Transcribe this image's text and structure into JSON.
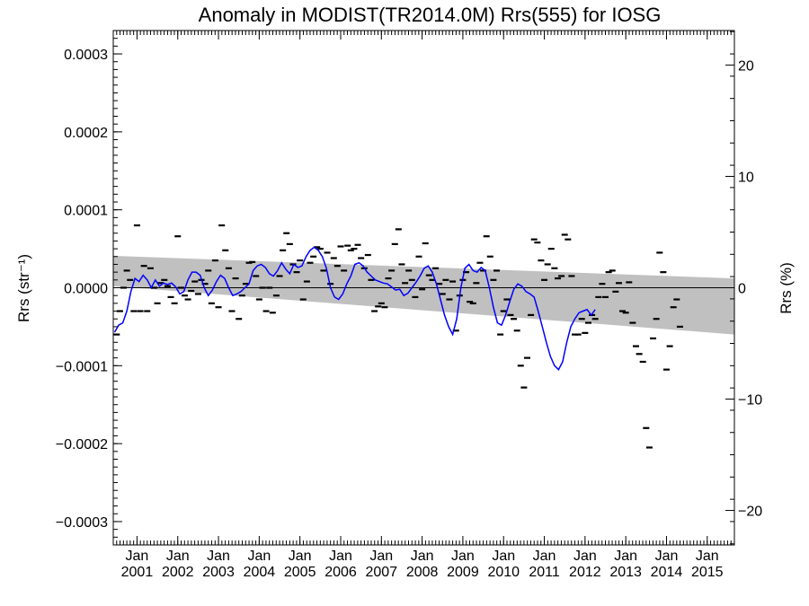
{
  "chart_data": {
    "type": "line",
    "title": "Anomaly in MODIST(TR2014.0M) Rrs(555) for IOSG",
    "ylabel_left": "Rrs (str⁻¹)",
    "ylabel_right": "Rrs (%)",
    "xlabel": "",
    "x_range": [
      "2000-06",
      "2015-09"
    ],
    "ylim_left": [
      -0.00033,
      0.00033
    ],
    "ylim_right": [
      -23.1,
      23.1
    ],
    "y_ticks_left": [
      "0.0003",
      "0.0002",
      "0.0001",
      "0.0000",
      "−0.0001",
      "−0.0002",
      "−0.0003"
    ],
    "y_ticks_right": [
      "20",
      "10",
      "0",
      "−10",
      "−20"
    ],
    "x_tick_top_labels": [
      "Jan",
      "Jan",
      "Jan",
      "Jan",
      "Jan",
      "Jan",
      "Jan",
      "Jan",
      "Jan",
      "Jan",
      "Jan",
      "Jan",
      "Jan",
      "Jan",
      "Jan"
    ],
    "x_tick_year_labels": [
      "2001",
      "2002",
      "2003",
      "2004",
      "2005",
      "2006",
      "2007",
      "2008",
      "2009",
      "2010",
      "2011",
      "2012",
      "2013",
      "2014",
      "2015"
    ],
    "grid": false,
    "colors": {
      "smoothed_line": "#0000ff",
      "monthly_markers": "#000000",
      "uncertainty_band": "#c0c0c0",
      "zero_line": "#000000"
    },
    "uncertainty_band": {
      "start": {
        "date": "2000.45",
        "upper": 4.1e-05,
        "lower": 2e-06
      },
      "end": {
        "date": "2015.75",
        "upper": 1.2e-05,
        "lower": -6e-05
      }
    },
    "monthly_anomaly": [
      [
        "2000.5",
        -6e-05
      ],
      [
        "2000.58",
        -3e-05
      ],
      [
        "2000.67",
        0.0
      ],
      [
        "2000.75",
        2.2e-05
      ],
      [
        "2000.83",
        1e-05
      ],
      [
        "2000.92",
        -3e-05
      ],
      [
        "2001.0",
        8e-05
      ],
      [
        "2001.08",
        -3e-05
      ],
      [
        "2001.17",
        2.8e-05
      ],
      [
        "2001.25",
        -3e-05
      ],
      [
        "2001.33",
        2.5e-05
      ],
      [
        "2001.42",
        0.0
      ],
      [
        "2001.5",
        -2e-05
      ],
      [
        "2001.58",
        6e-06
      ],
      [
        "2001.67",
        1e-05
      ],
      [
        "2001.75",
        2e-06
      ],
      [
        "2001.83",
        -1.2e-05
      ],
      [
        "2001.92",
        -2e-05
      ],
      [
        "2002.0",
        6.6e-05
      ],
      [
        "2002.08",
        0.0
      ],
      [
        "2002.17",
        -1e-05
      ],
      [
        "2002.25",
        -1.5e-05
      ],
      [
        "2002.33",
        -4e-06
      ],
      [
        "2002.42",
        8e-06
      ],
      [
        "2002.5",
        -8e-06
      ],
      [
        "2002.58",
        1e-05
      ],
      [
        "2002.67",
        5e-06
      ],
      [
        "2002.75",
        2.2e-05
      ],
      [
        "2002.83",
        -2e-05
      ],
      [
        "2002.92",
        3.5e-05
      ],
      [
        "2003.0",
        -2.5e-05
      ],
      [
        "2003.08",
        8e-05
      ],
      [
        "2003.17",
        4.8e-05
      ],
      [
        "2003.25",
        2.5e-05
      ],
      [
        "2003.33",
        -3e-05
      ],
      [
        "2003.42",
        1.2e-05
      ],
      [
        "2003.5",
        -4e-05
      ],
      [
        "2003.58",
        -1e-05
      ],
      [
        "2003.67",
        5e-06
      ],
      [
        "2003.75",
        3.2e-05
      ],
      [
        "2003.83",
        3.3e-05
      ],
      [
        "2003.92",
        1.5e-05
      ],
      [
        "2004.0",
        -1.5e-05
      ],
      [
        "2004.08",
        0.0
      ],
      [
        "2004.17",
        -3e-05
      ],
      [
        "2004.25",
        0.0
      ],
      [
        "2004.33",
        -3.2e-05
      ],
      [
        "2004.42",
        -1e-05
      ],
      [
        "2004.5",
        1.5e-05
      ],
      [
        "2004.58",
        4.8e-05
      ],
      [
        "2004.67",
        7e-05
      ],
      [
        "2004.75",
        5.6e-05
      ],
      [
        "2004.83",
        3e-05
      ],
      [
        "2004.92",
        2e-05
      ],
      [
        "2005.0",
        3.5e-05
      ],
      [
        "2005.08",
        -1.5e-05
      ],
      [
        "2005.17",
        8e-06
      ],
      [
        "2005.25",
        3.2e-05
      ],
      [
        "2005.33",
        4e-05
      ],
      [
        "2005.42",
        5.2e-05
      ],
      [
        "2005.5",
        5e-05
      ],
      [
        "2005.58",
        2.2e-05
      ],
      [
        "2005.67",
        4.5e-05
      ],
      [
        "2005.75",
        5e-06
      ],
      [
        "2005.83",
        3.8e-05
      ],
      [
        "2005.92",
        2.8e-05
      ],
      [
        "2006.0",
        5.3e-05
      ],
      [
        "2006.08",
        2.2e-05
      ],
      [
        "2006.17",
        5.4e-05
      ],
      [
        "2006.25",
        4.8e-05
      ],
      [
        "2006.33",
        5e-05
      ],
      [
        "2006.42",
        5.5e-05
      ],
      [
        "2006.5",
        3.8e-05
      ],
      [
        "2006.58",
        2.5e-05
      ],
      [
        "2006.67",
        4.2e-05
      ],
      [
        "2006.75",
        1e-05
      ],
      [
        "2006.83",
        -3e-05
      ],
      [
        "2006.92",
        -2.4e-05
      ],
      [
        "2007.0",
        -2e-05
      ],
      [
        "2007.08",
        -2.5e-05
      ],
      [
        "2007.17",
        1.2e-05
      ],
      [
        "2007.25",
        2.2e-05
      ],
      [
        "2007.33",
        5.6e-05
      ],
      [
        "2007.42",
        7.5e-05
      ],
      [
        "2007.5",
        3e-05
      ],
      [
        "2007.58",
        6e-06
      ],
      [
        "2007.67",
        2.2e-05
      ],
      [
        "2007.75",
        1e-05
      ],
      [
        "2007.83",
        -1.2e-05
      ],
      [
        "2007.92",
        4e-05
      ],
      [
        "2008.0",
        -2e-06
      ],
      [
        "2008.08",
        5.7e-05
      ],
      [
        "2008.17",
        1.6e-05
      ],
      [
        "2008.25",
        1e-05
      ],
      [
        "2008.33",
        2.5e-05
      ],
      [
        "2008.42",
        5e-06
      ],
      [
        "2008.5",
        -8e-06
      ],
      [
        "2008.58",
        1e-05
      ],
      [
        "2008.67",
        -1.5e-05
      ],
      [
        "2008.75",
        8e-06
      ],
      [
        "2008.83",
        -5.5e-05
      ],
      [
        "2008.92",
        -1e-05
      ],
      [
        "2009.0",
        1e-05
      ],
      [
        "2009.08",
        2e-05
      ],
      [
        "2009.17",
        -1.8e-05
      ],
      [
        "2009.25",
        -2e-05
      ],
      [
        "2009.33",
        6e-06
      ],
      [
        "2009.42",
        3.2e-05
      ],
      [
        "2009.5",
        2.2e-05
      ],
      [
        "2009.58",
        6.6e-05
      ],
      [
        "2009.67",
        4e-05
      ],
      [
        "2009.75",
        1e-05
      ],
      [
        "2009.83",
        2.2e-05
      ],
      [
        "2009.92",
        -6e-05
      ],
      [
        "2010.0",
        -3e-05
      ],
      [
        "2010.08",
        -1.5e-05
      ],
      [
        "2010.17",
        -3.5e-05
      ],
      [
        "2010.25",
        -4e-05
      ],
      [
        "2010.33",
        -5.5e-05
      ],
      [
        "2010.42",
        -0.0001
      ],
      [
        "2010.5",
        -0.000128
      ],
      [
        "2010.58",
        -9e-05
      ],
      [
        "2010.67",
        -3.5e-05
      ],
      [
        "2010.75",
        6.2e-05
      ],
      [
        "2010.83",
        5.8e-05
      ],
      [
        "2010.92",
        3.5e-05
      ],
      [
        "2011.0",
        1e-05
      ],
      [
        "2011.08",
        3e-05
      ],
      [
        "2011.17",
        5e-05
      ],
      [
        "2011.25",
        2.5e-05
      ],
      [
        "2011.33",
        1.2e-05
      ],
      [
        "2011.42",
        1.5e-05
      ],
      [
        "2011.5",
        6.8e-05
      ],
      [
        "2011.58",
        6.2e-05
      ],
      [
        "2011.67",
        1.5e-05
      ],
      [
        "2011.75",
        -6e-05
      ],
      [
        "2011.83",
        -6e-05
      ],
      [
        "2011.92",
        -4e-05
      ],
      [
        "2012.0",
        -5.8e-05
      ],
      [
        "2012.08",
        -4.5e-05
      ],
      [
        "2012.17",
        -3.5e-05
      ],
      [
        "2012.25",
        -4e-05
      ],
      [
        "2012.33",
        -1.2e-05
      ],
      [
        "2012.42",
        5e-06
      ],
      [
        "2012.5",
        -1.2e-05
      ],
      [
        "2012.58",
        2e-05
      ],
      [
        "2012.67",
        2.2e-05
      ],
      [
        "2012.75",
        -5e-06
      ],
      [
        "2012.83",
        6e-06
      ],
      [
        "2012.92",
        -3e-05
      ],
      [
        "2013.0",
        -3.2e-05
      ],
      [
        "2013.08",
        7e-06
      ],
      [
        "2013.17",
        -4.5e-05
      ],
      [
        "2013.25",
        -7.5e-05
      ],
      [
        "2013.33",
        -8.5e-05
      ],
      [
        "2013.42",
        -9.5e-05
      ],
      [
        "2013.5",
        -0.00018
      ],
      [
        "2013.58",
        -0.000205
      ],
      [
        "2013.67",
        -6.5e-05
      ],
      [
        "2013.75",
        -4e-05
      ],
      [
        "2013.83",
        4.5e-05
      ],
      [
        "2013.92",
        2e-05
      ],
      [
        "2014.0",
        -0.000105
      ],
      [
        "2014.08",
        -7.5e-05
      ],
      [
        "2014.17",
        -2.5e-05
      ],
      [
        "2014.25",
        -1.5e-05
      ],
      [
        "2014.33",
        -5e-05
      ]
    ],
    "smoothed_series": [
      [
        "2000.45",
        -5.7e-05
      ],
      [
        "2000.55",
        -4.8e-05
      ],
      [
        "2000.65",
        -4.5e-05
      ],
      [
        "2000.75",
        -3e-05
      ],
      [
        "2000.85",
        -5e-06
      ],
      [
        "2000.95",
        1.2e-05
      ],
      [
        "2001.05",
        8e-06
      ],
      [
        "2001.15",
        1.6e-05
      ],
      [
        "2001.25",
        1e-05
      ],
      [
        "2001.35",
        0.0
      ],
      [
        "2001.45",
        1e-05
      ],
      [
        "2001.55",
        2e-06
      ],
      [
        "2001.65",
        6e-06
      ],
      [
        "2001.75",
        4e-06
      ],
      [
        "2001.85",
        6e-06
      ],
      [
        "2001.95",
        1e-06
      ],
      [
        "2002.05",
        -8e-06
      ],
      [
        "2002.15",
        -5e-06
      ],
      [
        "2002.25",
        1e-05
      ],
      [
        "2002.35",
        2e-05
      ],
      [
        "2002.45",
        2e-05
      ],
      [
        "2002.55",
        1.6e-05
      ],
      [
        "2002.65",
        0.0
      ],
      [
        "2002.75",
        -1e-05
      ],
      [
        "2002.85",
        -3e-06
      ],
      [
        "2002.95",
        8e-06
      ],
      [
        "2003.05",
        1.6e-05
      ],
      [
        "2003.15",
        1.2e-05
      ],
      [
        "2003.25",
        0.0
      ],
      [
        "2003.35",
        -1e-05
      ],
      [
        "2003.45",
        -8e-06
      ],
      [
        "2003.55",
        -5e-06
      ],
      [
        "2003.65",
        0.0
      ],
      [
        "2003.75",
        5e-06
      ],
      [
        "2003.85",
        2.2e-05
      ],
      [
        "2003.95",
        2.8e-05
      ],
      [
        "2004.05",
        3e-05
      ],
      [
        "2004.15",
        2.6e-05
      ],
      [
        "2004.25",
        1.8e-05
      ],
      [
        "2004.35",
        1.5e-05
      ],
      [
        "2004.45",
        2.2e-05
      ],
      [
        "2004.55",
        3.2e-05
      ],
      [
        "2004.65",
        2.4e-05
      ],
      [
        "2004.75",
        1.8e-05
      ],
      [
        "2004.85",
        3e-05
      ],
      [
        "2004.95",
        2.6e-05
      ],
      [
        "2005.05",
        2.8e-05
      ],
      [
        "2005.15",
        4e-05
      ],
      [
        "2005.25",
        4.8e-05
      ],
      [
        "2005.35",
        5.2e-05
      ],
      [
        "2005.45",
        4.8e-05
      ],
      [
        "2005.55",
        4e-05
      ],
      [
        "2005.65",
        2.5e-05
      ],
      [
        "2005.75",
        0.0
      ],
      [
        "2005.85",
        -1.2e-05
      ],
      [
        "2005.95",
        -1.5e-05
      ],
      [
        "2006.05",
        -8e-06
      ],
      [
        "2006.15",
        5e-06
      ],
      [
        "2006.25",
        1.5e-05
      ],
      [
        "2006.35",
        3e-05
      ],
      [
        "2006.45",
        3.2e-05
      ],
      [
        "2006.55",
        2.8e-05
      ],
      [
        "2006.65",
        2e-05
      ],
      [
        "2006.75",
        1.5e-05
      ],
      [
        "2006.85",
        1e-05
      ],
      [
        "2006.95",
        8e-06
      ],
      [
        "2007.05",
        6e-06
      ],
      [
        "2007.15",
        5e-06
      ],
      [
        "2007.25",
        1e-06
      ],
      [
        "2007.35",
        -3e-06
      ],
      [
        "2007.45",
        -2e-06
      ],
      [
        "2007.55",
        -1e-05
      ],
      [
        "2007.65",
        -7e-06
      ],
      [
        "2007.75",
        0.0
      ],
      [
        "2007.85",
        7e-06
      ],
      [
        "2007.95",
        1.5e-05
      ],
      [
        "2008.05",
        2.5e-05
      ],
      [
        "2008.15",
        2.8e-05
      ],
      [
        "2008.25",
        2e-05
      ],
      [
        "2008.35",
        5e-06
      ],
      [
        "2008.45",
        -1.5e-05
      ],
      [
        "2008.55",
        -3.5e-05
      ],
      [
        "2008.65",
        -5e-05
      ],
      [
        "2008.75",
        -6e-05
      ],
      [
        "2008.85",
        -4e-05
      ],
      [
        "2008.95",
        0.0
      ],
      [
        "2009.05",
        2.5e-05
      ],
      [
        "2009.15",
        3e-05
      ],
      [
        "2009.25",
        2.2e-05
      ],
      [
        "2009.35",
        2e-05
      ],
      [
        "2009.45",
        2.6e-05
      ],
      [
        "2009.55",
        2.2e-05
      ],
      [
        "2009.65",
        0.0
      ],
      [
        "2009.75",
        -2.5e-05
      ],
      [
        "2009.85",
        -4.5e-05
      ],
      [
        "2009.95",
        -4.8e-05
      ],
      [
        "2010.05",
        -3.5e-05
      ],
      [
        "2010.15",
        -1.8e-05
      ],
      [
        "2010.25",
        -2e-06
      ],
      [
        "2010.35",
        5e-06
      ],
      [
        "2010.45",
        2e-06
      ],
      [
        "2010.55",
        -5e-06
      ],
      [
        "2010.65",
        -8e-06
      ],
      [
        "2010.75",
        -1.2e-05
      ],
      [
        "2010.85",
        -3e-05
      ],
      [
        "2010.95",
        -5e-05
      ],
      [
        "2011.05",
        -7e-05
      ],
      [
        "2011.15",
        -8.8e-05
      ],
      [
        "2011.25",
        -0.0001
      ],
      [
        "2011.35",
        -0.000105
      ],
      [
        "2011.45",
        -9.5e-05
      ],
      [
        "2011.55",
        -7e-05
      ],
      [
        "2011.65",
        -5e-05
      ],
      [
        "2011.75",
        -4e-05
      ],
      [
        "2011.85",
        -3.2e-05
      ],
      [
        "2011.95",
        -3e-05
      ],
      [
        "2012.05",
        -2.8e-05
      ],
      [
        "2012.15",
        -3.5e-05
      ],
      [
        "2012.25",
        -2.8e-05
      ]
    ]
  }
}
